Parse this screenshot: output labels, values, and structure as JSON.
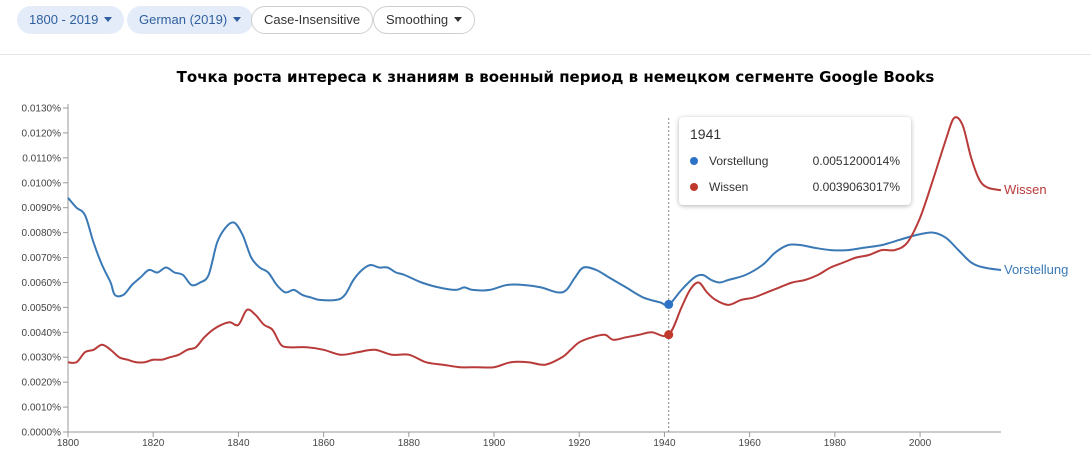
{
  "toolbar": {
    "range_label": "1800 - 2019",
    "corpus_label": "German (2019)",
    "case_label": "Case-Insensitive",
    "smoothing_label": "Smoothing"
  },
  "chart_data": {
    "type": "line",
    "title": "Точка роста интереса к знаниям в военный период в немецком сегменте Google Books",
    "xlabel": "",
    "ylabel": "",
    "xlim": [
      1800,
      2019
    ],
    "ylim": [
      0,
      0.013
    ],
    "grid": false,
    "x_ticks": [
      1800,
      1820,
      1840,
      1860,
      1880,
      1900,
      1920,
      1940,
      1960,
      1980,
      2000
    ],
    "y_ticks": [
      "0.0000%",
      "0.0010%",
      "0.0020%",
      "0.0030%",
      "0.0040%",
      "0.0050%",
      "0.0060%",
      "0.0070%",
      "0.0080%",
      "0.0090%",
      "0.0100%",
      "0.0110%",
      "0.0120%",
      "0.0130%"
    ],
    "series": [
      {
        "name": "Vorstellung",
        "color": "#3a79b5",
        "points": [
          [
            1800,
            0.0094
          ],
          [
            1802,
            0.009
          ],
          [
            1804,
            0.0087
          ],
          [
            1806,
            0.0076
          ],
          [
            1808,
            0.0067
          ],
          [
            1810,
            0.006
          ],
          [
            1811,
            0.0055
          ],
          [
            1813,
            0.0055
          ],
          [
            1815,
            0.0059
          ],
          [
            1817,
            0.0062
          ],
          [
            1819,
            0.0065
          ],
          [
            1821,
            0.0064
          ],
          [
            1823,
            0.0066
          ],
          [
            1825,
            0.0064
          ],
          [
            1827,
            0.0063
          ],
          [
            1829,
            0.0059
          ],
          [
            1831,
            0.006
          ],
          [
            1833,
            0.0063
          ],
          [
            1835,
            0.0076
          ],
          [
            1837,
            0.0082
          ],
          [
            1839,
            0.0084
          ],
          [
            1841,
            0.0079
          ],
          [
            1843,
            0.007
          ],
          [
            1845,
            0.0066
          ],
          [
            1847,
            0.0064
          ],
          [
            1849,
            0.0059
          ],
          [
            1851,
            0.0056
          ],
          [
            1853,
            0.0057
          ],
          [
            1855,
            0.0055
          ],
          [
            1857,
            0.0054
          ],
          [
            1859,
            0.0053
          ],
          [
            1863,
            0.0053
          ],
          [
            1865,
            0.0055
          ],
          [
            1867,
            0.0061
          ],
          [
            1869,
            0.0065
          ],
          [
            1871,
            0.0067
          ],
          [
            1873,
            0.0066
          ],
          [
            1875,
            0.0066
          ],
          [
            1877,
            0.0064
          ],
          [
            1879,
            0.0063
          ],
          [
            1883,
            0.006
          ],
          [
            1887,
            0.0058
          ],
          [
            1891,
            0.0057
          ],
          [
            1893,
            0.0058
          ],
          [
            1895,
            0.0057
          ],
          [
            1899,
            0.0057
          ],
          [
            1903,
            0.0059
          ],
          [
            1907,
            0.0059
          ],
          [
            1911,
            0.0058
          ],
          [
            1915,
            0.0056
          ],
          [
            1917,
            0.0057
          ],
          [
            1919,
            0.0062
          ],
          [
            1921,
            0.0066
          ],
          [
            1924,
            0.0065
          ],
          [
            1927,
            0.0062
          ],
          [
            1931,
            0.0058
          ],
          [
            1935,
            0.0054
          ],
          [
            1939,
            0.0052
          ],
          [
            1941,
            0.0051
          ],
          [
            1944,
            0.0057
          ],
          [
            1947,
            0.0062
          ],
          [
            1949,
            0.0063
          ],
          [
            1951,
            0.0061
          ],
          [
            1953,
            0.006
          ],
          [
            1955,
            0.0061
          ],
          [
            1959,
            0.0063
          ],
          [
            1963,
            0.0067
          ],
          [
            1966,
            0.0072
          ],
          [
            1969,
            0.0075
          ],
          [
            1972,
            0.0075
          ],
          [
            1975,
            0.0074
          ],
          [
            1979,
            0.0073
          ],
          [
            1983,
            0.0073
          ],
          [
            1987,
            0.0074
          ],
          [
            1991,
            0.0075
          ],
          [
            1995,
            0.0077
          ],
          [
            1999,
            0.0079
          ],
          [
            2003,
            0.008
          ],
          [
            2006,
            0.0078
          ],
          [
            2009,
            0.0073
          ],
          [
            2012,
            0.0068
          ],
          [
            2015,
            0.0066
          ],
          [
            2019,
            0.0065
          ]
        ]
      },
      {
        "name": "Wissen",
        "color": "#b83b3a",
        "points": [
          [
            1800,
            0.0028
          ],
          [
            1802,
            0.0028
          ],
          [
            1804,
            0.0032
          ],
          [
            1806,
            0.0033
          ],
          [
            1808,
            0.0035
          ],
          [
            1810,
            0.0033
          ],
          [
            1812,
            0.003
          ],
          [
            1814,
            0.0029
          ],
          [
            1816,
            0.0028
          ],
          [
            1818,
            0.0028
          ],
          [
            1820,
            0.0029
          ],
          [
            1822,
            0.0029
          ],
          [
            1824,
            0.003
          ],
          [
            1826,
            0.0031
          ],
          [
            1828,
            0.0033
          ],
          [
            1830,
            0.0034
          ],
          [
            1832,
            0.0038
          ],
          [
            1834,
            0.0041
          ],
          [
            1836,
            0.0043
          ],
          [
            1838,
            0.0044
          ],
          [
            1840,
            0.0043
          ],
          [
            1842,
            0.0049
          ],
          [
            1844,
            0.0047
          ],
          [
            1846,
            0.0043
          ],
          [
            1848,
            0.0041
          ],
          [
            1850,
            0.0035
          ],
          [
            1852,
            0.0034
          ],
          [
            1856,
            0.0034
          ],
          [
            1860,
            0.0033
          ],
          [
            1864,
            0.0031
          ],
          [
            1868,
            0.0032
          ],
          [
            1872,
            0.0033
          ],
          [
            1876,
            0.0031
          ],
          [
            1880,
            0.0031
          ],
          [
            1884,
            0.0028
          ],
          [
            1888,
            0.0027
          ],
          [
            1892,
            0.0026
          ],
          [
            1896,
            0.0026
          ],
          [
            1900,
            0.0026
          ],
          [
            1904,
            0.0028
          ],
          [
            1908,
            0.0028
          ],
          [
            1912,
            0.0027
          ],
          [
            1916,
            0.003
          ],
          [
            1918,
            0.0033
          ],
          [
            1920,
            0.0036
          ],
          [
            1923,
            0.0038
          ],
          [
            1926,
            0.0039
          ],
          [
            1928,
            0.0037
          ],
          [
            1931,
            0.0038
          ],
          [
            1934,
            0.0039
          ],
          [
            1937,
            0.004
          ],
          [
            1941,
            0.0039
          ],
          [
            1944,
            0.005
          ],
          [
            1946,
            0.0057
          ],
          [
            1948,
            0.006
          ],
          [
            1950,
            0.0056
          ],
          [
            1952,
            0.0053
          ],
          [
            1955,
            0.0051
          ],
          [
            1958,
            0.0053
          ],
          [
            1961,
            0.0054
          ],
          [
            1964,
            0.0056
          ],
          [
            1967,
            0.0058
          ],
          [
            1970,
            0.006
          ],
          [
            1973,
            0.0061
          ],
          [
            1976,
            0.0063
          ],
          [
            1979,
            0.0066
          ],
          [
            1982,
            0.0068
          ],
          [
            1985,
            0.007
          ],
          [
            1988,
            0.0071
          ],
          [
            1991,
            0.0073
          ],
          [
            1994,
            0.0073
          ],
          [
            1997,
            0.0076
          ],
          [
            2000,
            0.0086
          ],
          [
            2003,
            0.0101
          ],
          [
            2006,
            0.0117
          ],
          [
            2008,
            0.0126
          ],
          [
            2010,
            0.0123
          ],
          [
            2012,
            0.011
          ],
          [
            2014,
            0.0101
          ],
          [
            2016,
            0.0098
          ],
          [
            2019,
            0.0097
          ]
        ]
      }
    ],
    "highlight": {
      "year": "1941",
      "x": 1941,
      "entries": [
        {
          "name": "Vorstellung",
          "value": "0.0051200014%",
          "color": "#2c72c6",
          "y": 0.00512
        },
        {
          "name": "Wissen",
          "value": "0.0039063017%",
          "color": "#c0392b",
          "y": 0.0039063
        }
      ]
    }
  }
}
